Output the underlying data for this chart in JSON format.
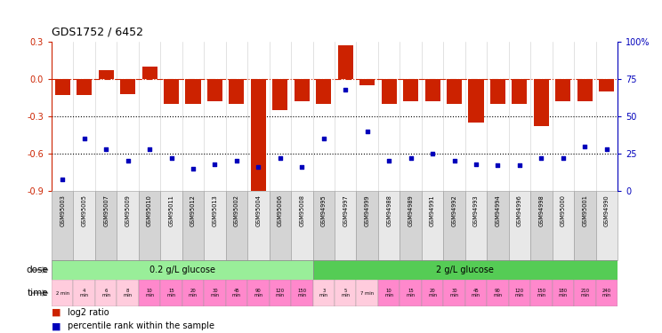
{
  "title": "GDS1752 / 6452",
  "samples": [
    "GSM95003",
    "GSM95005",
    "GSM95007",
    "GSM95009",
    "GSM95010",
    "GSM95011",
    "GSM95012",
    "GSM95013",
    "GSM95002",
    "GSM95004",
    "GSM95006",
    "GSM95008",
    "GSM94995",
    "GSM94997",
    "GSM94999",
    "GSM94988",
    "GSM94989",
    "GSM94991",
    "GSM94992",
    "GSM94993",
    "GSM94994",
    "GSM94996",
    "GSM94998",
    "GSM95000",
    "GSM95001",
    "GSM94990"
  ],
  "log2_ratio": [
    -0.13,
    -0.13,
    0.07,
    -0.12,
    0.1,
    -0.2,
    -0.2,
    -0.18,
    -0.2,
    -0.93,
    -0.25,
    -0.18,
    -0.2,
    0.27,
    -0.05,
    -0.2,
    -0.18,
    -0.18,
    -0.2,
    -0.35,
    -0.2,
    -0.2,
    -0.38,
    -0.18,
    -0.18,
    -0.1
  ],
  "percentile": [
    8,
    35,
    28,
    20,
    28,
    22,
    15,
    18,
    20,
    16,
    22,
    16,
    35,
    68,
    40,
    20,
    22,
    25,
    20,
    18,
    17,
    17,
    22,
    22,
    30,
    28
  ],
  "bar_color": "#CC2200",
  "dot_color": "#0000BB",
  "ylim_left": [
    -0.9,
    0.3
  ],
  "ylim_right": [
    0,
    100
  ],
  "yticks_left": [
    -0.9,
    -0.6,
    -0.3,
    0.0,
    0.3
  ],
  "yticks_right": [
    0,
    25,
    50,
    75,
    100
  ],
  "dose_groups": [
    {
      "start": 0,
      "end": 11,
      "label": "0.2 g/L glucose",
      "color": "#99EE99"
    },
    {
      "start": 12,
      "end": 25,
      "label": "2 g/L glucose",
      "color": "#55CC55"
    }
  ],
  "time_labels": [
    "2 min",
    "4\nmin",
    "6\nmin",
    "8\nmin",
    "10\nmin",
    "15\nmin",
    "20\nmin",
    "30\nmin",
    "45\nmin",
    "90\nmin",
    "120\nmin",
    "150\nmin",
    "3\nmin",
    "5\nmin",
    "7 min",
    "10\nmin",
    "15\nmin",
    "20\nmin",
    "30\nmin",
    "45\nmin",
    "90\nmin",
    "120\nmin",
    "150\nmin",
    "180\nmin",
    "210\nmin",
    "240\nmin"
  ],
  "time_colors": [
    "#FFCCDD",
    "#FFCCDD",
    "#FFCCDD",
    "#FFCCDD",
    "#FF88CC",
    "#FF88CC",
    "#FF88CC",
    "#FF88CC",
    "#FF88CC",
    "#FF88CC",
    "#FF88CC",
    "#FF88CC",
    "#FFCCDD",
    "#FFCCDD",
    "#FFCCDD",
    "#FF88CC",
    "#FF88CC",
    "#FF88CC",
    "#FF88CC",
    "#FF88CC",
    "#FF88CC",
    "#FF88CC",
    "#FF88CC",
    "#FF88CC",
    "#FF88CC",
    "#FF88CC"
  ],
  "fig_width": 7.44,
  "fig_height": 3.75,
  "dpi": 100
}
